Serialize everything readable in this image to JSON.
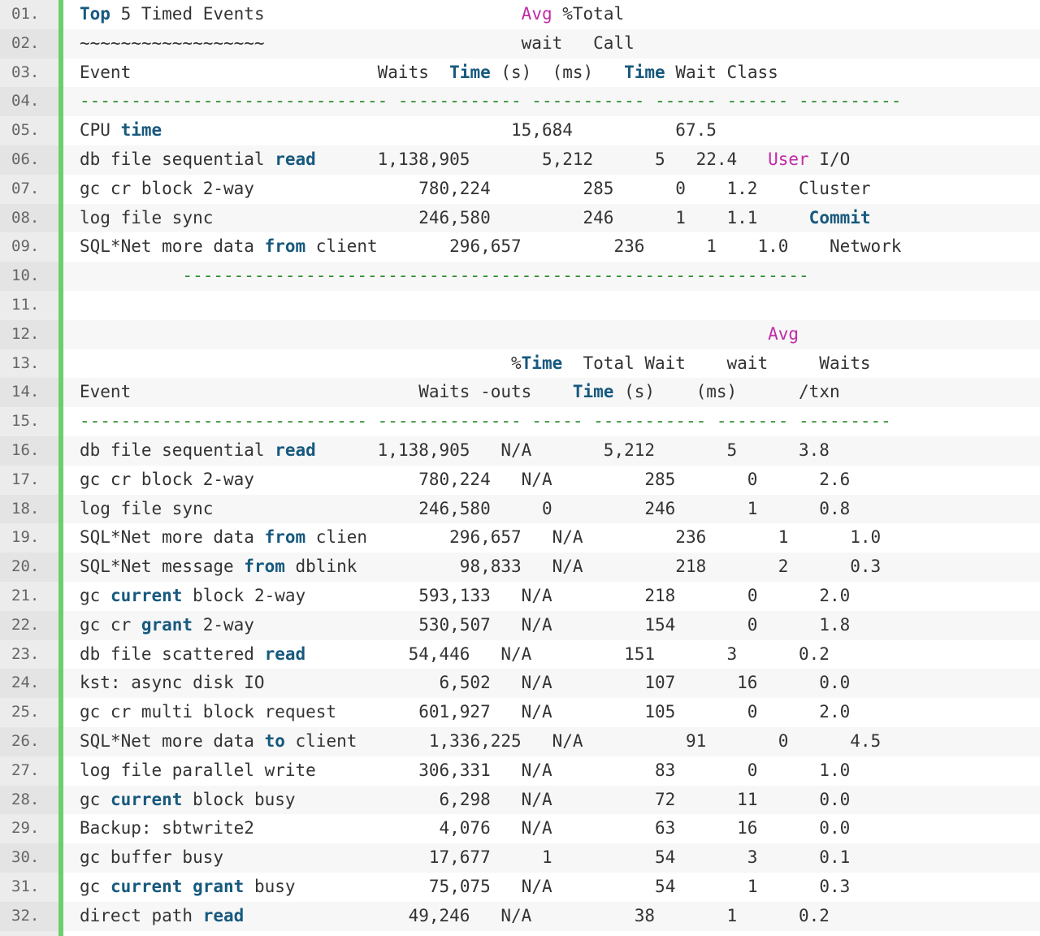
{
  "lines": [
    {
      "num": "01.",
      "segments": [
        {
          "t": "Top",
          "c": "kw"
        },
        {
          "t": " 5 Timed Events                         ",
          "c": ""
        },
        {
          "t": "Avg",
          "c": "pk"
        },
        {
          "t": " %Total",
          "c": ""
        }
      ]
    },
    {
      "num": "02.",
      "segments": [
        {
          "t": "~~~~~~~~~~~~~~~~~~                         wait   Call",
          "c": ""
        }
      ]
    },
    {
      "num": "03.",
      "segments": [
        {
          "t": "Event                        Waits  ",
          "c": ""
        },
        {
          "t": "Time",
          "c": "kw"
        },
        {
          "t": " (s)  (ms)   ",
          "c": ""
        },
        {
          "t": "Time",
          "c": "kw"
        },
        {
          "t": " Wait Class",
          "c": ""
        }
      ]
    },
    {
      "num": "04.",
      "segments": [
        {
          "t": "------------------------------ ------------ ----------- ------ ------ ----------",
          "c": "dash"
        }
      ]
    },
    {
      "num": "05.",
      "segments": [
        {
          "t": "CPU ",
          "c": ""
        },
        {
          "t": "time",
          "c": "kw"
        },
        {
          "t": "                                  15,684          67.5",
          "c": ""
        }
      ]
    },
    {
      "num": "06.",
      "segments": [
        {
          "t": "db file sequential ",
          "c": ""
        },
        {
          "t": "read",
          "c": "kw"
        },
        {
          "t": "      1,138,905       5,212      5   22.4   ",
          "c": ""
        },
        {
          "t": "User",
          "c": "pk"
        },
        {
          "t": " I/O",
          "c": ""
        }
      ]
    },
    {
      "num": "07.",
      "segments": [
        {
          "t": "gc cr block 2-way                780,224         285      0    1.2    Cluster",
          "c": ""
        }
      ]
    },
    {
      "num": "08.",
      "segments": [
        {
          "t": "log file sync                    246,580         246      1    1.1     ",
          "c": ""
        },
        {
          "t": "Commit",
          "c": "kw"
        }
      ]
    },
    {
      "num": "09.",
      "segments": [
        {
          "t": "SQL*Net more data ",
          "c": ""
        },
        {
          "t": "from",
          "c": "kw"
        },
        {
          "t": " client       296,657         236      1    1.0    Network",
          "c": ""
        }
      ]
    },
    {
      "num": "10.",
      "segments": [
        {
          "t": "          -------------------------------------------------------------",
          "c": "dash"
        }
      ]
    },
    {
      "num": "11.",
      "segments": [
        {
          "t": "",
          "c": ""
        }
      ]
    },
    {
      "num": "12.",
      "segments": [
        {
          "t": "                                                                   ",
          "c": ""
        },
        {
          "t": "Avg",
          "c": "pk"
        }
      ]
    },
    {
      "num": "13.",
      "segments": [
        {
          "t": "                                          %",
          "c": ""
        },
        {
          "t": "Time",
          "c": "kw"
        },
        {
          "t": "  Total Wait    wait     Waits",
          "c": ""
        }
      ]
    },
    {
      "num": "14.",
      "segments": [
        {
          "t": "Event                            Waits -outs    ",
          "c": ""
        },
        {
          "t": "Time",
          "c": "kw"
        },
        {
          "t": " (s)    (ms)      /txn",
          "c": ""
        }
      ]
    },
    {
      "num": "15.",
      "segments": [
        {
          "t": "---------------------------- -------------- ----- ----------- ------- ---------",
          "c": "dash"
        }
      ]
    },
    {
      "num": "16.",
      "segments": [
        {
          "t": "db file sequential ",
          "c": ""
        },
        {
          "t": "read",
          "c": "kw"
        },
        {
          "t": "      1,138,905   N/A       5,212       5      3.8",
          "c": ""
        }
      ]
    },
    {
      "num": "17.",
      "segments": [
        {
          "t": "gc cr block 2-way                780,224   N/A         285       0      2.6",
          "c": ""
        }
      ]
    },
    {
      "num": "18.",
      "segments": [
        {
          "t": "log file sync                    246,580     0         246       1      0.8",
          "c": ""
        }
      ]
    },
    {
      "num": "19.",
      "segments": [
        {
          "t": "SQL*Net more data ",
          "c": ""
        },
        {
          "t": "from",
          "c": "kw"
        },
        {
          "t": " clien        296,657   N/A         236       1      1.0",
          "c": ""
        }
      ]
    },
    {
      "num": "20.",
      "segments": [
        {
          "t": "SQL*Net message ",
          "c": ""
        },
        {
          "t": "from",
          "c": "kw"
        },
        {
          "t": " dblink          98,833   N/A         218       2      0.3",
          "c": ""
        }
      ]
    },
    {
      "num": "21.",
      "segments": [
        {
          "t": "gc ",
          "c": ""
        },
        {
          "t": "current",
          "c": "kw"
        },
        {
          "t": " block 2-way           593,133   N/A         218       0      2.0",
          "c": ""
        }
      ]
    },
    {
      "num": "22.",
      "segments": [
        {
          "t": "gc cr ",
          "c": ""
        },
        {
          "t": "grant",
          "c": "kw"
        },
        {
          "t": " 2-way                530,507   N/A         154       0      1.8",
          "c": ""
        }
      ]
    },
    {
      "num": "23.",
      "segments": [
        {
          "t": "db file scattered ",
          "c": ""
        },
        {
          "t": "read",
          "c": "kw"
        },
        {
          "t": "          54,446   N/A         151       3      0.2",
          "c": ""
        }
      ]
    },
    {
      "num": "24.",
      "segments": [
        {
          "t": "kst: async disk IO                 6,502   N/A         107      16      0.0",
          "c": ""
        }
      ]
    },
    {
      "num": "25.",
      "segments": [
        {
          "t": "gc cr multi block request        601,927   N/A         105       0      2.0",
          "c": ""
        }
      ]
    },
    {
      "num": "26.",
      "segments": [
        {
          "t": "SQL*Net more data ",
          "c": ""
        },
        {
          "t": "to",
          "c": "kw"
        },
        {
          "t": " client       1,336,225   N/A          91       0      4.5",
          "c": ""
        }
      ]
    },
    {
      "num": "27.",
      "segments": [
        {
          "t": "log file parallel write          306,331   N/A          83       0      1.0",
          "c": ""
        }
      ]
    },
    {
      "num": "28.",
      "segments": [
        {
          "t": "gc ",
          "c": ""
        },
        {
          "t": "current",
          "c": "kw"
        },
        {
          "t": " block busy              6,298   N/A          72      11      0.0",
          "c": ""
        }
      ]
    },
    {
      "num": "29.",
      "segments": [
        {
          "t": "Backup: sbtwrite2                  4,076   N/A          63      16      0.0",
          "c": ""
        }
      ]
    },
    {
      "num": "30.",
      "segments": [
        {
          "t": "gc buffer busy                    17,677     1          54       3      0.1",
          "c": ""
        }
      ]
    },
    {
      "num": "31.",
      "segments": [
        {
          "t": "gc ",
          "c": ""
        },
        {
          "t": "current",
          "c": "kw"
        },
        {
          "t": " ",
          "c": ""
        },
        {
          "t": "grant",
          "c": "kw"
        },
        {
          "t": " busy             75,075   N/A          54       1      0.3",
          "c": ""
        }
      ]
    },
    {
      "num": "32.",
      "segments": [
        {
          "t": "direct path ",
          "c": ""
        },
        {
          "t": "read",
          "c": "kw"
        },
        {
          "t": "                49,246   N/A          38       1      0.2",
          "c": ""
        }
      ]
    }
  ]
}
